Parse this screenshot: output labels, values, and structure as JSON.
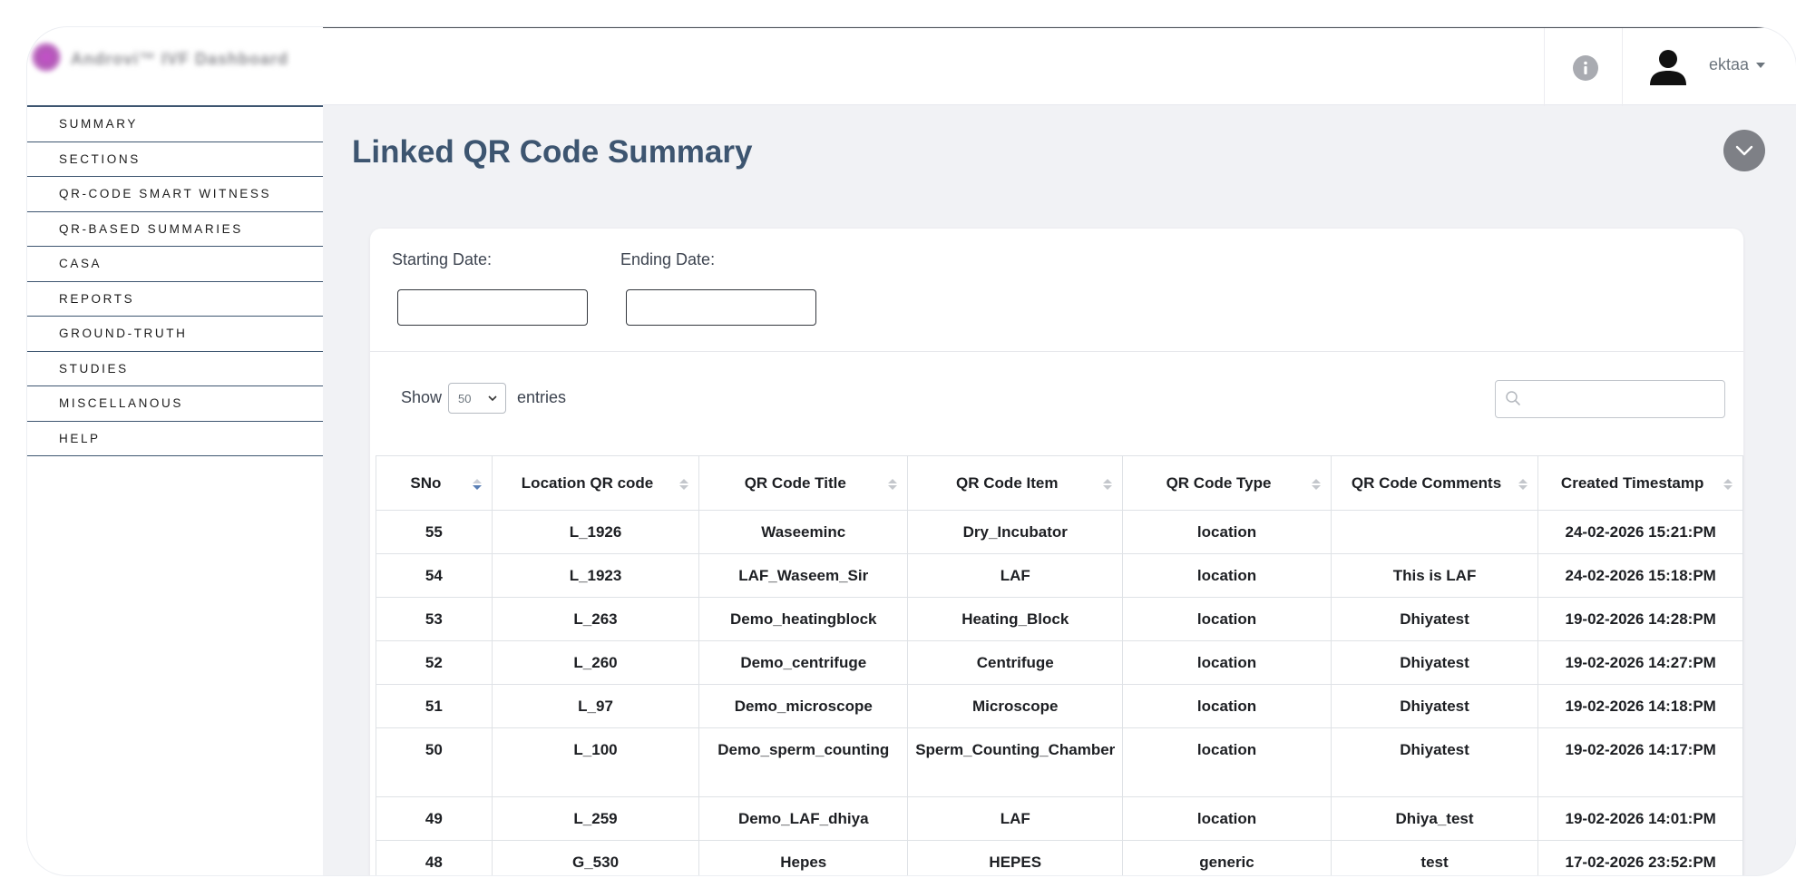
{
  "brand": {
    "text": "Androvi™ IVF Dashboard"
  },
  "sidebar": {
    "items": [
      {
        "label": "SUMMARY",
        "name": "sidebar-item-summary"
      },
      {
        "label": "SECTIONS",
        "name": "sidebar-item-sections"
      },
      {
        "label": "QR-CODE SMART WITNESS",
        "name": "sidebar-item-qr-code-smart-witness"
      },
      {
        "label": "QR-BASED SUMMARIES",
        "name": "sidebar-item-qr-based-summaries"
      },
      {
        "label": "CASA",
        "name": "sidebar-item-casa"
      },
      {
        "label": "REPORTS",
        "name": "sidebar-item-reports"
      },
      {
        "label": "GROUND-TRUTH",
        "name": "sidebar-item-ground-truth"
      },
      {
        "label": "STUDIES",
        "name": "sidebar-item-studies"
      },
      {
        "label": "MISCELLANOUS",
        "name": "sidebar-item-miscellanous"
      },
      {
        "label": "HELP",
        "name": "sidebar-item-help"
      }
    ]
  },
  "header": {
    "user_name": "ektaa",
    "info_icon": "info-icon",
    "user_icon": "user-icon"
  },
  "page": {
    "title": "Linked QR Code Summary"
  },
  "filters": {
    "start_label": "Starting Date:",
    "end_label": "Ending Date:",
    "start_value": "",
    "end_value": ""
  },
  "entries": {
    "show_label": "Show",
    "value": "50",
    "suffix_label": "entries"
  },
  "search": {
    "value": "",
    "placeholder": ""
  },
  "table": {
    "columns": [
      "SNo",
      "Location QR code",
      "QR Code Title",
      "QR Code Item",
      "QR Code Type",
      "QR Code Comments",
      "Created Timestamp"
    ],
    "rows": [
      [
        "55",
        "L_1926",
        "Waseeminc",
        "Dry_Incubator",
        "location",
        "",
        "24-02-2026 15:21:PM"
      ],
      [
        "54",
        "L_1923",
        "LAF_Waseem_Sir",
        "LAF",
        "location",
        "This is LAF",
        "24-02-2026 15:18:PM"
      ],
      [
        "53",
        "L_263",
        "Demo_heatingblock",
        "Heating_Block",
        "location",
        "Dhiyatest",
        "19-02-2026 14:28:PM"
      ],
      [
        "52",
        "L_260",
        "Demo_centrifuge",
        "Centrifuge",
        "location",
        "Dhiyatest",
        "19-02-2026 14:27:PM"
      ],
      [
        "51",
        "L_97",
        "Demo_microscope",
        "Microscope",
        "location",
        "Dhiyatest",
        "19-02-2026 14:18:PM"
      ],
      [
        "50",
        "L_100",
        "Demo_sperm_counting",
        "Sperm_Counting_Chamber",
        "location",
        "Dhiyatest",
        "19-02-2026 14:17:PM"
      ],
      [
        "49",
        "L_259",
        "Demo_LAF_dhiya",
        "LAF",
        "location",
        "Dhiya_test",
        "19-02-2026 14:01:PM"
      ],
      [
        "48",
        "G_530",
        "Hepes",
        "HEPES",
        "generic",
        "test",
        "17-02-2026 23:52:PM"
      ],
      [
        "",
        "",
        "",
        "",
        "",
        "",
        ""
      ]
    ]
  },
  "colors": {
    "accent": "#3d5570",
    "sidebar_rule": "#3d5570",
    "background": "#f1f2f5"
  }
}
